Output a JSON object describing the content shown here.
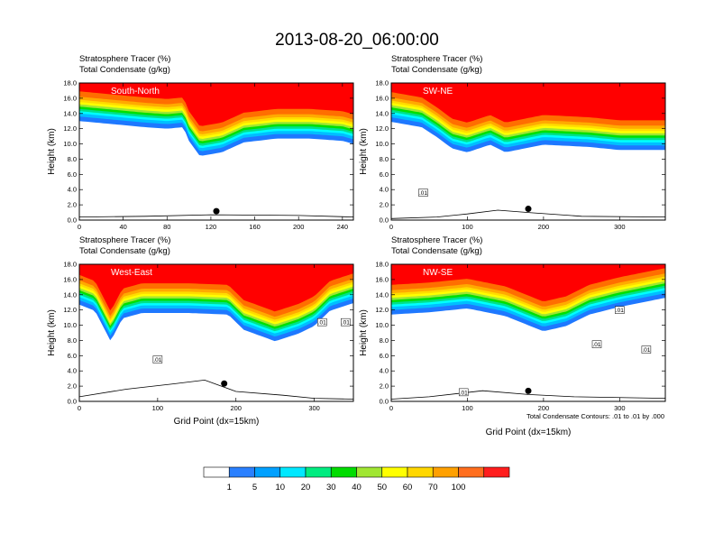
{
  "figure": {
    "title": "2013-08-20_06:00:00",
    "contour_note": "Total Condensate Contours: .01 to .01 by .000"
  },
  "colors": {
    "levels_fill": [
      "#ffffff",
      "#1e78ff",
      "#00bfff",
      "#00ffff",
      "#00e08a",
      "#00e000",
      "#a0e632",
      "#ffff00",
      "#ffdc00",
      "#ffaa00",
      "#ff6e00",
      "#ff0000"
    ]
  },
  "colorbar": {
    "labels": [
      "1",
      "5",
      "10",
      "20",
      "30",
      "40",
      "50",
      "60",
      "70",
      "100"
    ],
    "colors": [
      "#ffffff",
      "#2a80ff",
      "#00a0ff",
      "#00e8ff",
      "#00ec80",
      "#00dc00",
      "#a0e632",
      "#ffff00",
      "#ffd700",
      "#ffa000",
      "#ff6e1e",
      "#ff1e1e"
    ]
  },
  "chart_data": [
    {
      "type": "heatmap",
      "panel_name": "South-North",
      "var_line1": "Stratosphere Tracer   (%)",
      "var_line2": "Total Condensate   (g/kg)",
      "ylabel": "Height (km)",
      "xlabel": "",
      "xlim": [
        0,
        250
      ],
      "ylim": [
        0,
        18
      ],
      "xticks": [
        "0",
        "40",
        "80",
        "120",
        "160",
        "200",
        "240"
      ],
      "xtick_values": [
        0,
        40,
        80,
        120,
        160,
        200,
        240
      ],
      "yticks": [
        "0.0",
        "2.0",
        "4.0",
        "6.0",
        "8.0",
        "10.0",
        "12.0",
        "14.0",
        "16.0",
        "18.0"
      ],
      "tracer_base": [
        [
          0,
          14.6
        ],
        [
          30,
          14.2
        ],
        [
          60,
          13.8
        ],
        [
          80,
          13.6
        ],
        [
          95,
          13.8
        ],
        [
          100,
          12.0
        ],
        [
          110,
          10.0
        ],
        [
          130,
          10.5
        ],
        [
          150,
          11.8
        ],
        [
          180,
          12.3
        ],
        [
          210,
          12.3
        ],
        [
          240,
          12.0
        ],
        [
          250,
          11.6
        ]
      ],
      "contour_labels": [],
      "terrain": [
        [
          0,
          0.4
        ],
        [
          60,
          0.5
        ],
        [
          120,
          0.7
        ],
        [
          200,
          0.6
        ],
        [
          250,
          0.4
        ]
      ],
      "marker_x": 125
    },
    {
      "type": "heatmap",
      "panel_name": "SW-NE",
      "var_line1": "Stratosphere Tracer   (%)",
      "var_line2": "Total Condensate   (g/kg)",
      "ylabel": "Height (km)",
      "xlabel": "",
      "xlim": [
        0,
        360
      ],
      "ylim": [
        0,
        18
      ],
      "xticks": [
        "0",
        "100",
        "200",
        "300"
      ],
      "xtick_values": [
        0,
        100,
        200,
        300
      ],
      "yticks": [
        "0.0",
        "2.0",
        "4.0",
        "6.0",
        "8.0",
        "10.0",
        "12.0",
        "14.0",
        "16.0",
        "18.0"
      ],
      "tracer_base": [
        [
          0,
          14.5
        ],
        [
          40,
          13.8
        ],
        [
          60,
          12.5
        ],
        [
          80,
          11.0
        ],
        [
          100,
          10.5
        ],
        [
          130,
          11.5
        ],
        [
          150,
          10.5
        ],
        [
          200,
          11.5
        ],
        [
          260,
          11.2
        ],
        [
          300,
          10.8
        ],
        [
          360,
          10.8
        ]
      ],
      "contour_labels": [
        {
          "x": 42,
          "y": 3.6,
          "text": ".01"
        }
      ],
      "terrain": [
        [
          0,
          0.2
        ],
        [
          60,
          0.4
        ],
        [
          100,
          0.8
        ],
        [
          140,
          1.3
        ],
        [
          180,
          1.0
        ],
        [
          250,
          0.5
        ],
        [
          360,
          0.4
        ]
      ],
      "marker_x": 180
    },
    {
      "type": "heatmap",
      "panel_name": "West-East",
      "var_line1": "Stratosphere Tracer   (%)",
      "var_line2": "Total Condensate   (g/kg)",
      "ylabel": "Height (km)",
      "xlabel": "Grid Point (dx=15km)",
      "xlim": [
        0,
        350
      ],
      "ylim": [
        0,
        18
      ],
      "xticks": [
        "0",
        "100",
        "200",
        "300"
      ],
      "xtick_values": [
        0,
        100,
        200,
        300
      ],
      "yticks": [
        "0.0",
        "2.0",
        "4.0",
        "6.0",
        "8.0",
        "10.0",
        "12.0",
        "14.0",
        "16.0",
        "18.0"
      ],
      "tracer_base": [
        [
          0,
          14.3
        ],
        [
          20,
          13.5
        ],
        [
          40,
          9.5
        ],
        [
          55,
          12.5
        ],
        [
          80,
          13.2
        ],
        [
          140,
          13.2
        ],
        [
          190,
          13.0
        ],
        [
          210,
          11.0
        ],
        [
          250,
          9.5
        ],
        [
          280,
          10.5
        ],
        [
          300,
          11.5
        ],
        [
          320,
          13.5
        ],
        [
          350,
          14.5
        ]
      ],
      "contour_labels": [
        {
          "x": 100,
          "y": 5.5,
          "text": ".01"
        },
        {
          "x": 310,
          "y": 10.4,
          "text": ".01"
        },
        {
          "x": 340,
          "y": 10.4,
          "text": ".01"
        }
      ],
      "terrain": [
        [
          0,
          0.6
        ],
        [
          60,
          1.6
        ],
        [
          120,
          2.3
        ],
        [
          160,
          2.8
        ],
        [
          200,
          1.3
        ],
        [
          260,
          0.8
        ],
        [
          300,
          0.4
        ],
        [
          350,
          0.3
        ]
      ],
      "marker_x": 185
    },
    {
      "type": "heatmap",
      "panel_name": "NW-SE",
      "var_line1": "Stratosphere Tracer   (%)",
      "var_line2": "Total Condensate   (g/kg)",
      "ylabel": "Height (km)",
      "xlabel": "Grid Point (dx=15km)",
      "xlim": [
        0,
        360
      ],
      "ylim": [
        0,
        18
      ],
      "xticks": [
        "0",
        "100",
        "200",
        "300"
      ],
      "xtick_values": [
        0,
        100,
        200,
        300
      ],
      "yticks": [
        "0.0",
        "2.0",
        "4.0",
        "6.0",
        "8.0",
        "10.0",
        "12.0",
        "14.0",
        "16.0",
        "18.0"
      ],
      "tracer_base": [
        [
          0,
          13.0
        ],
        [
          50,
          13.3
        ],
        [
          100,
          13.8
        ],
        [
          150,
          12.8
        ],
        [
          200,
          10.8
        ],
        [
          230,
          11.5
        ],
        [
          260,
          13.0
        ],
        [
          300,
          14.0
        ],
        [
          360,
          15.2
        ]
      ],
      "contour_labels": [
        {
          "x": 95,
          "y": 1.2,
          "text": ".01"
        },
        {
          "x": 270,
          "y": 7.5,
          "text": ".01"
        },
        {
          "x": 300,
          "y": 12.0,
          "text": ".01"
        },
        {
          "x": 335,
          "y": 6.8,
          "text": ".01"
        }
      ],
      "terrain": [
        [
          0,
          0.3
        ],
        [
          50,
          0.6
        ],
        [
          120,
          1.4
        ],
        [
          180,
          0.9
        ],
        [
          240,
          0.6
        ],
        [
          360,
          0.4
        ]
      ],
      "marker_x": 180
    }
  ]
}
